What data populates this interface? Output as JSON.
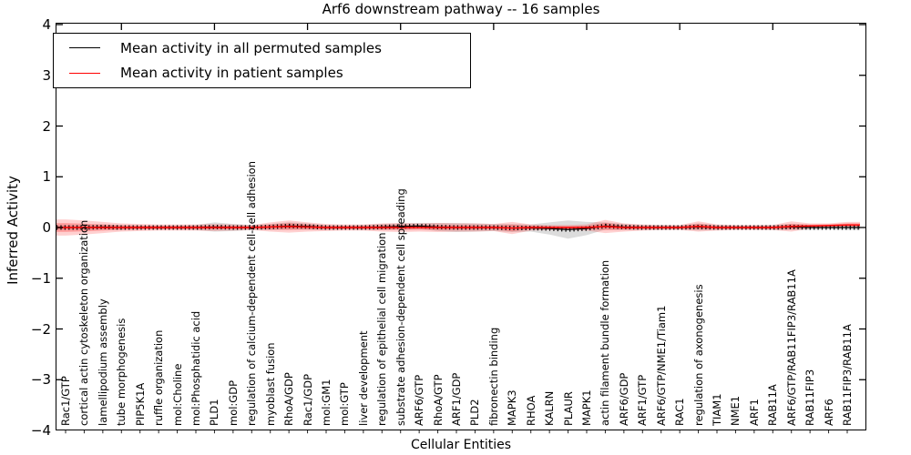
{
  "figure": {
    "title": "Arf6 downstream pathway -- 16 samples",
    "xlabel": "Cellular Entities",
    "ylabel": "Inferred Activity"
  },
  "chart_data": {
    "type": "line",
    "title": "Arf6 downstream pathway -- 16 samples",
    "xlabel": "Cellular Entities",
    "ylabel": "Inferred Activity",
    "ylim": [
      -4,
      4
    ],
    "ytick_values": [
      4,
      3,
      2,
      1,
      0,
      -1,
      -2,
      -3,
      -4
    ],
    "grid": false,
    "legend_position": "upper left",
    "categories": [
      "Rac1/GTP",
      "cortical actin cytoskeleton organization",
      "lamellipodium assembly",
      "tube morphogenesis",
      "PIP5K1A",
      "ruffle organization",
      "mol:Choline",
      "mol:Phosphatidic acid",
      "PLD1",
      "mol:GDP",
      "regulation of calcium-dependent cell-cell adhesion",
      "myoblast fusion",
      "RhoA/GDP",
      "Rac1/GDP",
      "mol:GM1",
      "mol:GTP",
      "liver development",
      "regulation of epithelial cell migration",
      "substrate adhesion-dependent cell spreading",
      "ARF6/GTP",
      "RhoA/GTP",
      "ARF1/GDP",
      "PLD2",
      "fibronectin binding",
      "MAPK3",
      "RHOA",
      "KALRN",
      "PLAUR",
      "MAPK1",
      "actin filament bundle formation",
      "ARF6/GDP",
      "ARF1/GTP",
      "ARF6/GTP/NME1/Tiam1",
      "RAC1",
      "regulation of axonogenesis",
      "TIAM1",
      "NME1",
      "ARF1",
      "RAB11A",
      "ARF6/GTP/RAB11FIP3/RAB11A",
      "RAB11FIP3",
      "ARF6",
      "RAB11FIP3/RAB11A"
    ],
    "series": [
      {
        "name": "Mean activity in all permuted samples",
        "color": "#000000",
        "band_color": "#808080",
        "mean": [
          0.0,
          0.0,
          0.01,
          0.0,
          0.0,
          0.0,
          0.0,
          0.0,
          0.01,
          0.0,
          0.0,
          0.01,
          0.03,
          0.02,
          0.0,
          0.0,
          0.0,
          0.01,
          0.02,
          0.03,
          0.01,
          0.0,
          0.0,
          0.0,
          -0.01,
          -0.01,
          -0.02,
          -0.04,
          -0.02,
          0.03,
          0.01,
          0.0,
          0.0,
          0.0,
          0.01,
          0.0,
          0.0,
          0.0,
          0.0,
          0.01,
          0.0,
          0.0,
          0.0
        ],
        "std": [
          0.05,
          0.05,
          0.05,
          0.05,
          0.04,
          0.04,
          0.04,
          0.05,
          0.09,
          0.07,
          0.05,
          0.06,
          0.07,
          0.06,
          0.05,
          0.04,
          0.05,
          0.06,
          0.06,
          0.06,
          0.08,
          0.09,
          0.08,
          0.07,
          0.08,
          0.07,
          0.12,
          0.18,
          0.13,
          0.07,
          0.06,
          0.05,
          0.05,
          0.04,
          0.07,
          0.05,
          0.04,
          0.04,
          0.05,
          0.06,
          0.05,
          0.04,
          0.05
        ]
      },
      {
        "name": "Mean activity in patient samples",
        "color": "#ff0000",
        "band_color": "#ff2a2a",
        "mean": [
          0.0,
          0.0,
          0.0,
          0.0,
          0.0,
          0.0,
          0.0,
          0.0,
          0.0,
          0.0,
          0.0,
          0.01,
          0.02,
          0.01,
          0.0,
          0.0,
          0.0,
          0.0,
          0.0,
          0.0,
          0.0,
          0.0,
          0.0,
          0.0,
          -0.01,
          0.0,
          0.0,
          0.0,
          0.0,
          0.02,
          0.0,
          0.0,
          0.0,
          0.0,
          0.02,
          0.0,
          0.0,
          0.0,
          0.0,
          0.02,
          0.03,
          0.04,
          0.05
        ],
        "std": [
          0.16,
          0.14,
          0.11,
          0.08,
          0.07,
          0.06,
          0.06,
          0.06,
          0.07,
          0.06,
          0.05,
          0.09,
          0.12,
          0.09,
          0.07,
          0.06,
          0.06,
          0.08,
          0.09,
          0.08,
          0.09,
          0.08,
          0.08,
          0.07,
          0.12,
          0.06,
          0.05,
          0.05,
          0.06,
          0.13,
          0.08,
          0.06,
          0.05,
          0.05,
          0.1,
          0.06,
          0.05,
          0.05,
          0.05,
          0.1,
          0.05,
          0.04,
          0.06
        ]
      }
    ]
  }
}
